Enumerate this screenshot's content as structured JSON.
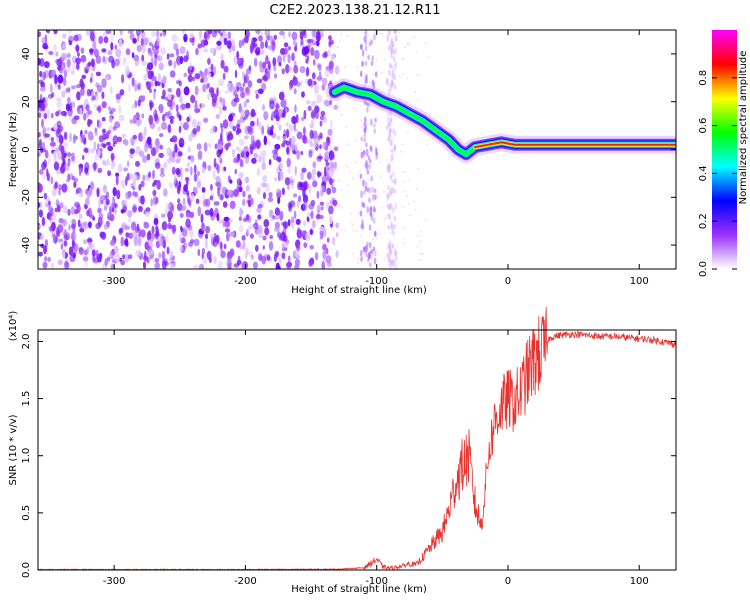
{
  "chart_data": [
    {
      "type": "heatmap",
      "title": "C2E2.2023.138.21.12.R11",
      "xlabel": "Height of straight line (km)",
      "ylabel": "Frequency (Hz)",
      "xlim": [
        -358,
        128
      ],
      "ylim": [
        -50,
        50
      ],
      "xticks": [
        -300,
        -200,
        -100,
        0,
        100
      ],
      "yticks": [
        -40,
        -20,
        0,
        20,
        40
      ],
      "colorbar": {
        "label": "Normalized spectral amplitude",
        "range": [
          0,
          1
        ],
        "ticks": [
          "0.0",
          "0.2",
          "0.4",
          "0.6",
          "0.8"
        ],
        "colors": [
          "#ffffff",
          "#9b30ff",
          "#0000ff",
          "#00ffff",
          "#00ff00",
          "#ffff00",
          "#ff0000",
          "#ff00ff"
        ]
      },
      "noise_region": {
        "x_range": [
          -358,
          -130
        ],
        "freq_range": [
          -50,
          50
        ],
        "amplitude": 0.12
      },
      "sparse_columns": [
        {
          "x_range": [
            -112,
            -100
          ],
          "amplitude": 0.06
        },
        {
          "x_range": [
            -92,
            -85
          ],
          "amplitude": 0.04
        }
      ],
      "signal_trace": {
        "points": [
          {
            "x": -132,
            "freq": 24
          },
          {
            "x": -125,
            "freq": 26
          },
          {
            "x": -115,
            "freq": 24
          },
          {
            "x": -105,
            "freq": 23
          },
          {
            "x": -95,
            "freq": 20
          },
          {
            "x": -85,
            "freq": 18
          },
          {
            "x": -75,
            "freq": 15
          },
          {
            "x": -65,
            "freq": 12
          },
          {
            "x": -55,
            "freq": 8
          },
          {
            "x": -45,
            "freq": 4
          },
          {
            "x": -38,
            "freq": 0
          },
          {
            "x": -32,
            "freq": -2
          },
          {
            "x": -25,
            "freq": 1
          },
          {
            "x": -15,
            "freq": 2
          },
          {
            "x": -5,
            "freq": 3
          },
          {
            "x": 5,
            "freq": 2
          },
          {
            "x": 50,
            "freq": 2
          },
          {
            "x": 128,
            "freq": 2
          }
        ],
        "peak_amplitude_from_x": -30
      }
    },
    {
      "type": "line",
      "title": "",
      "xlabel": "Height of straight line (km)",
      "ylabel": "SNR (10 * v/v)",
      "scale_label": "(x10⁴)",
      "xlim": [
        -358,
        128
      ],
      "ylim": [
        0,
        2.1
      ],
      "xticks": [
        -300,
        -200,
        -100,
        0,
        100
      ],
      "yticks": [
        "0.0",
        "0.5",
        "1.0",
        "1.5",
        "2.0"
      ],
      "ytick_values": [
        0,
        0.5,
        1.0,
        1.5,
        2.0
      ],
      "series": [
        {
          "color": "#e8322e",
          "x": [
            -358,
            -200,
            -130,
            -110,
            -105,
            -100,
            -95,
            -90,
            -85,
            -80,
            -75,
            -70,
            -65,
            -60,
            -55,
            -50,
            -45,
            -40,
            -35,
            -30,
            -25,
            -20,
            -15,
            -10,
            -5,
            0,
            5,
            10,
            15,
            20,
            25,
            30,
            35,
            40,
            50,
            60,
            70,
            80,
            90,
            100,
            110,
            120,
            128
          ],
          "y": [
            0.005,
            0.005,
            0.008,
            0.02,
            0.06,
            0.1,
            0.03,
            0.02,
            0.03,
            0.04,
            0.06,
            0.05,
            0.12,
            0.2,
            0.28,
            0.35,
            0.55,
            0.8,
            0.95,
            1.05,
            0.6,
            0.4,
            1.05,
            1.35,
            1.48,
            1.55,
            1.52,
            1.62,
            1.78,
            1.9,
            1.98,
            2.02,
            2.05,
            2.06,
            2.07,
            2.06,
            2.05,
            2.05,
            2.04,
            2.03,
            2.02,
            2.0,
            1.98
          ]
        }
      ]
    }
  ]
}
